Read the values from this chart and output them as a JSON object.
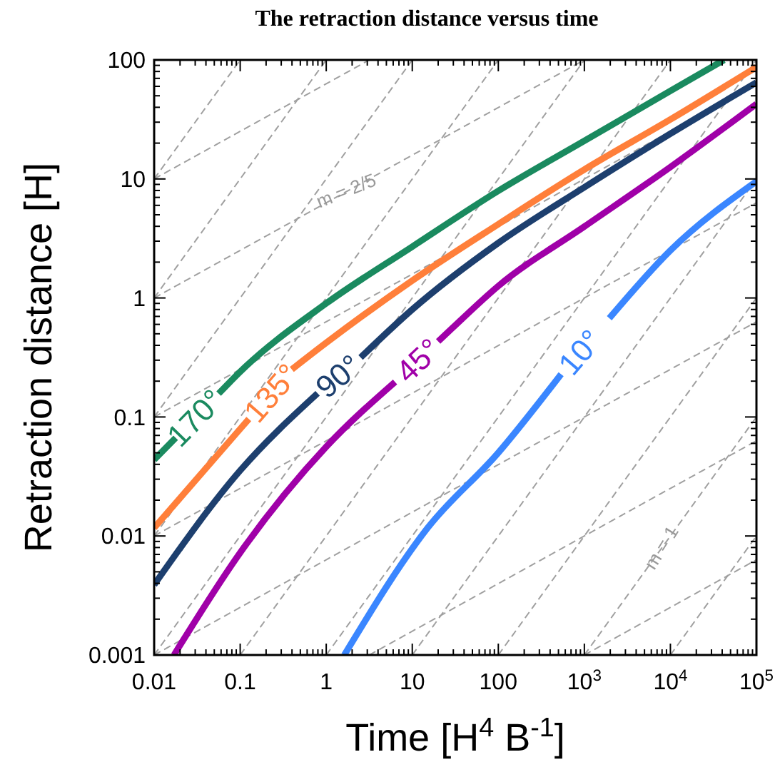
{
  "chart_data": {
    "type": "line",
    "title": "The retraction distance versus time",
    "xlabel": "Time [H$^{4}$ B$^{-1}$]",
    "ylabel": "Retraction distance [H]",
    "log": "xy",
    "grid": false,
    "marker": "none",
    "line_style": "solid",
    "xlim": [
      0.01,
      100000
    ],
    "ylim": [
      0.001,
      100
    ],
    "xticks": [
      0.01,
      0.1,
      1,
      10,
      100,
      {
        "value": 1000,
        "label": "10$^{3}$"
      },
      {
        "value": 10000,
        "label": "10$^{4}$"
      },
      {
        "value": 100000,
        "label": "10$^{5}$"
      },
      {
        "value": 0.02,
        "label": null
      },
      {
        "value": 0.03,
        "label": null
      },
      {
        "value": 0.04,
        "label": null
      },
      {
        "value": 0.05,
        "label": null
      },
      {
        "value": 0.06,
        "label": null
      },
      {
        "value": 0.07,
        "label": null
      },
      {
        "value": 0.08,
        "label": null
      },
      {
        "value": 0.09,
        "label": null
      },
      {
        "value": 0.2,
        "label": null
      },
      {
        "value": 0.3,
        "label": null
      },
      {
        "value": 0.4,
        "label": null
      },
      {
        "value": 0.5,
        "label": null
      },
      {
        "value": 0.6,
        "label": null
      },
      {
        "value": 0.7,
        "label": null
      },
      {
        "value": 0.8,
        "label": null
      },
      {
        "value": 0.9,
        "label": null
      },
      {
        "value": 2,
        "label": null
      },
      {
        "value": 3,
        "label": null
      },
      {
        "value": 4,
        "label": null
      },
      {
        "value": 5,
        "label": null
      },
      {
        "value": 6,
        "label": null
      },
      {
        "value": 7,
        "label": null
      },
      {
        "value": 8,
        "label": null
      },
      {
        "value": 9,
        "label": null
      },
      {
        "value": 20,
        "label": null
      },
      {
        "value": 30,
        "label": null
      },
      {
        "value": 40,
        "label": null
      },
      {
        "value": 50,
        "label": null
      },
      {
        "value": 60,
        "label": null
      },
      {
        "value": 70,
        "label": null
      },
      {
        "value": 80,
        "label": null
      },
      {
        "value": 90,
        "label": null
      },
      {
        "value": 200,
        "label": null
      },
      {
        "value": 300,
        "label": null
      },
      {
        "value": 400,
        "label": null
      },
      {
        "value": 500,
        "label": null
      },
      {
        "value": 600,
        "label": null
      },
      {
        "value": 700,
        "label": null
      },
      {
        "value": 800,
        "label": null
      },
      {
        "value": 900,
        "label": null
      },
      {
        "value": 2000,
        "label": null
      },
      {
        "value": 3000,
        "label": null
      },
      {
        "value": 4000,
        "label": null
      },
      {
        "value": 5000,
        "label": null
      },
      {
        "value": 6000,
        "label": null
      },
      {
        "value": 7000,
        "label": null
      },
      {
        "value": 8000,
        "label": null
      },
      {
        "value": 9000,
        "label": null
      },
      {
        "value": 20000,
        "label": null
      },
      {
        "value": 30000,
        "label": null
      },
      {
        "value": 40000,
        "label": null
      },
      {
        "value": 50000,
        "label": null
      },
      {
        "value": 60000,
        "label": null
      },
      {
        "value": 70000,
        "label": null
      },
      {
        "value": 80000,
        "label": null
      },
      {
        "value": 90000,
        "label": null
      }
    ],
    "yticks": [
      0.001,
      0.01,
      0.1,
      1,
      10,
      100,
      {
        "value": 0.002,
        "label": null
      },
      {
        "value": 0.003,
        "label": null
      },
      {
        "value": 0.004,
        "label": null
      },
      {
        "value": 0.005,
        "label": null
      },
      {
        "value": 0.006,
        "label": null
      },
      {
        "value": 0.007,
        "label": null
      },
      {
        "value": 0.008,
        "label": null
      },
      {
        "value": 0.009,
        "label": null
      },
      {
        "value": 0.02,
        "label": null
      },
      {
        "value": 0.03,
        "label": null
      },
      {
        "value": 0.04,
        "label": null
      },
      {
        "value": 0.05,
        "label": null
      },
      {
        "value": 0.06,
        "label": null
      },
      {
        "value": 0.07,
        "label": null
      },
      {
        "value": 0.08,
        "label": null
      },
      {
        "value": 0.09,
        "label": null
      },
      {
        "value": 0.2,
        "label": null
      },
      {
        "value": 0.3,
        "label": null
      },
      {
        "value": 0.4,
        "label": null
      },
      {
        "value": 0.5,
        "label": null
      },
      {
        "value": 0.6,
        "label": null
      },
      {
        "value": 0.7,
        "label": null
      },
      {
        "value": 0.8,
        "label": null
      },
      {
        "value": 0.9,
        "label": null
      },
      {
        "value": 2,
        "label": null
      },
      {
        "value": 3,
        "label": null
      },
      {
        "value": 4,
        "label": null
      },
      {
        "value": 5,
        "label": null
      },
      {
        "value": 6,
        "label": null
      },
      {
        "value": 7,
        "label": null
      },
      {
        "value": 8,
        "label": null
      },
      {
        "value": 9,
        "label": null
      },
      {
        "value": 20,
        "label": null
      },
      {
        "value": 30,
        "label": null
      },
      {
        "value": 40,
        "label": null
      },
      {
        "value": 50,
        "label": null
      },
      {
        "value": 60,
        "label": null
      },
      {
        "value": 70,
        "label": null
      },
      {
        "value": 80,
        "label": null
      },
      {
        "value": 90,
        "label": null
      }
    ],
    "annotations": [
      {
        "text": "m = 2/5",
        "x": 1.7,
        "y": 8
      },
      {
        "text": "m = 1",
        "x": 7800,
        "y": 0.008
      }
    ],
    "series": [
      {
        "color": "#a0a0a0",
        "line_style": "dashed",
        "x": [
          0.01,
          0.1
        ],
        "values": [
          10,
          100
        ]
      },
      {
        "color": "#a0a0a0",
        "line_style": "dashed",
        "x": [
          0.01,
          1
        ],
        "values": [
          1,
          100
        ]
      },
      {
        "color": "#a0a0a0",
        "line_style": "dashed",
        "x": [
          0.01,
          10
        ],
        "values": [
          0.1,
          100
        ]
      },
      {
        "color": "#a0a0a0",
        "line_style": "dashed",
        "x": [
          0.01,
          100
        ],
        "values": [
          0.01,
          100
        ]
      },
      {
        "color": "#a0a0a0",
        "line_style": "dashed",
        "x": [
          0.01,
          1000
        ],
        "values": [
          0.001,
          100
        ]
      },
      {
        "color": "#a0a0a0",
        "line_style": "dashed",
        "x": [
          0.1,
          10000
        ],
        "values": [
          0.001,
          100
        ]
      },
      {
        "color": "#a0a0a0",
        "line_style": "dashed",
        "x": [
          1,
          100000
        ],
        "values": [
          0.001,
          100
        ]
      },
      {
        "color": "#a0a0a0",
        "line_style": "dashed",
        "x": [
          10,
          100000
        ],
        "values": [
          0.001,
          10
        ]
      },
      {
        "color": "#a0a0a0",
        "line_style": "dashed",
        "x": [
          100,
          100000
        ],
        "values": [
          0.001,
          1
        ]
      },
      {
        "color": "#a0a0a0",
        "line_style": "dashed",
        "x": [
          1000,
          100000
        ],
        "values": [
          0.001,
          0.1
        ]
      },
      {
        "color": "#a0a0a0",
        "line_style": "dashed",
        "x": [
          10000,
          100000
        ],
        "values": [
          0.001,
          0.01
        ]
      },
      {
        "color": "#a0a0a0",
        "line_style": "dashed",
        "x": [
          0.01,
          3.162
        ],
        "values": [
          10,
          100
        ]
      },
      {
        "color": "#a0a0a0",
        "line_style": "dashed",
        "x": [
          0.01,
          1000
        ],
        "values": [
          1,
          100
        ]
      },
      {
        "color": "#a0a0a0",
        "line_style": "dashed",
        "x": [
          0.01,
          100000
        ],
        "values": [
          0.1,
          63.1
        ]
      },
      {
        "color": "#a0a0a0",
        "line_style": "dashed",
        "x": [
          0.01,
          100000
        ],
        "values": [
          0.01,
          6.31
        ]
      },
      {
        "color": "#a0a0a0",
        "line_style": "dashed",
        "x": [
          0.01,
          100000
        ],
        "values": [
          0.001,
          0.631
        ]
      },
      {
        "color": "#a0a0a0",
        "line_style": "dashed",
        "x": [
          3.162,
          100000
        ],
        "values": [
          0.001,
          0.0631
        ]
      },
      {
        "color": "#a0a0a0",
        "line_style": "dashed",
        "x": [
          1000,
          100000
        ],
        "values": [
          0.001,
          0.00631
        ]
      },
      {
        "name": "170°",
        "color": "#1a8a5f",
        "x": [
          0.01,
          0.0178,
          0.03,
          0.0562,
          0.1,
          1,
          10,
          100,
          1000,
          10000,
          42000
        ],
        "values": [
          0.0437,
          0.0668,
          null,
          0.157,
          0.24,
          0.9,
          2.7,
          7.94,
          20.9,
          55,
          100
        ]
      },
      {
        "name": "135°",
        "color": "#ff7f3a",
        "x": [
          0.01,
          0.1,
          0.126,
          0.23,
          0.398,
          1,
          10,
          100,
          1000,
          10000,
          100000
        ],
        "values": [
          0.0117,
          0.0794,
          0.0962,
          null,
          0.251,
          0.42,
          1.4,
          4.17,
          12,
          31.6,
          87
        ]
      },
      {
        "name": "90°",
        "color": "#1d3f6e",
        "x": [
          0.01,
          0.1,
          0.794,
          1.38,
          2.51,
          10,
          100,
          1000,
          10000,
          100000
        ],
        "values": [
          0.00389,
          0.0355,
          0.158,
          null,
          0.316,
          0.8,
          2.9,
          8.51,
          24,
          64.6
        ]
      },
      {
        "name": "45°",
        "color": "#a000a8",
        "x": [
          0.017,
          0.1,
          1,
          6.31,
          11.7,
          20,
          29.5,
          100,
          1000,
          10000,
          100000
        ],
        "values": [
          0.001,
          0.00724,
          0.0562,
          0.197,
          null,
          0.431,
          0.562,
          1.26,
          3.98,
          12.6,
          42.7
        ]
      },
      {
        "name": "10°",
        "color": "#3a86ff",
        "x": [
          1.62,
          15.1,
          100,
          537,
          891,
          1950,
          10000,
          100000
        ],
        "values": [
          0.001,
          0.0117,
          0.0501,
          0.229,
          null,
          0.676,
          2.51,
          9.55
        ]
      }
    ]
  }
}
